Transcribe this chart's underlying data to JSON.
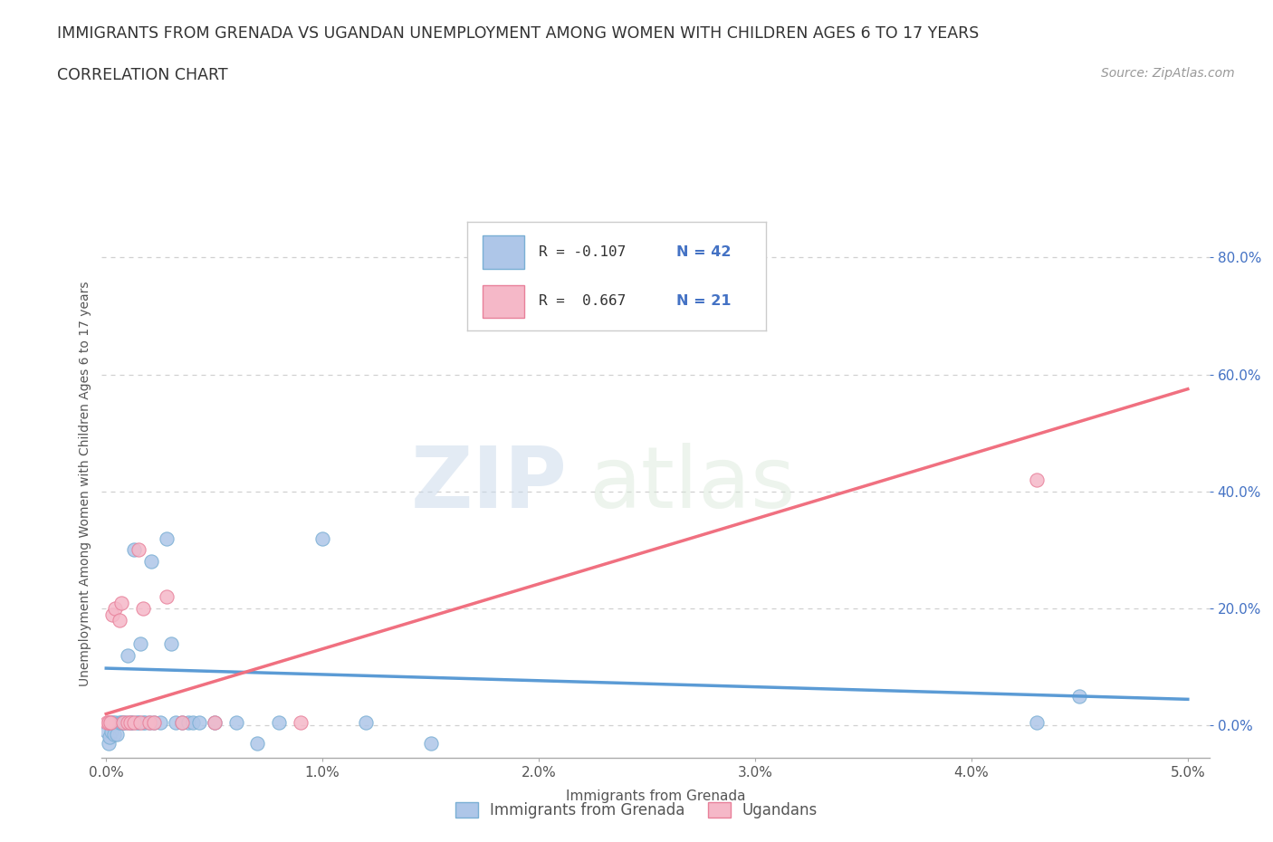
{
  "title": "IMMIGRANTS FROM GRENADA VS UGANDAN UNEMPLOYMENT AMONG WOMEN WITH CHILDREN AGES 6 TO 17 YEARS",
  "subtitle": "CORRELATION CHART",
  "source": "Source: ZipAtlas.com",
  "xlabel": "Immigrants from Grenada",
  "ylabel": "Unemployment Among Women with Children Ages 6 to 17 years",
  "xlim": [
    -0.0002,
    0.051
  ],
  "ylim": [
    -0.055,
    0.88
  ],
  "xticks": [
    0.0,
    0.01,
    0.02,
    0.03,
    0.04,
    0.05
  ],
  "xtick_labels": [
    "0.0%",
    "1.0%",
    "2.0%",
    "3.0%",
    "4.0%",
    "5.0%"
  ],
  "yticks": [
    0.0,
    0.2,
    0.4,
    0.6,
    0.8
  ],
  "ytick_labels": [
    "0.0%",
    "20.0%",
    "40.0%",
    "60.0%",
    "80.0%"
  ],
  "series1_color": "#aec6e8",
  "series1_edge": "#7aafd4",
  "series2_color": "#f5b8c8",
  "series2_edge": "#e8809a",
  "line1_color": "#5b9bd5",
  "line2_color": "#f07080",
  "legend_r1": "R = -0.107",
  "legend_n1": "N = 42",
  "legend_r2": "R =  0.667",
  "legend_n2": "N = 21",
  "legend_label1": "Immigrants from Grenada",
  "legend_label2": "Ugandans",
  "watermark_zip": "ZIP",
  "watermark_atlas": "atlas",
  "background_color": "#ffffff",
  "grid_color": "#d0d0d0",
  "series1_x": [
    5e-05,
    0.0001,
    0.00015,
    0.0002,
    0.00025,
    0.0003,
    0.00035,
    0.0004,
    0.0005,
    0.0006,
    0.0007,
    0.0008,
    0.0009,
    0.001,
    0.0011,
    0.0012,
    0.0013,
    0.0014,
    0.0015,
    0.0016,
    0.0017,
    0.0018,
    0.002,
    0.0021,
    0.0022,
    0.0025,
    0.0028,
    0.003,
    0.0032,
    0.0035,
    0.0038,
    0.004,
    0.0043,
    0.005,
    0.006,
    0.007,
    0.008,
    0.01,
    0.012,
    0.015,
    0.043,
    0.045
  ],
  "series1_y": [
    -0.01,
    -0.03,
    -0.02,
    0.005,
    -0.01,
    0.005,
    -0.015,
    0.005,
    -0.015,
    0.005,
    0.005,
    0.005,
    0.005,
    0.12,
    0.005,
    0.005,
    0.3,
    0.005,
    0.005,
    0.14,
    0.005,
    0.005,
    0.005,
    0.28,
    0.005,
    0.005,
    0.32,
    0.14,
    0.005,
    0.005,
    0.005,
    0.005,
    0.005,
    0.005,
    0.005,
    -0.03,
    0.005,
    0.32,
    0.005,
    -0.03,
    0.005,
    0.05
  ],
  "series2_x": [
    5e-05,
    0.0001,
    0.0002,
    0.0003,
    0.0004,
    0.0006,
    0.0007,
    0.0008,
    0.001,
    0.0011,
    0.0013,
    0.0015,
    0.0016,
    0.0017,
    0.002,
    0.0022,
    0.0028,
    0.0035,
    0.005,
    0.009,
    0.043
  ],
  "series2_y": [
    0.005,
    0.005,
    0.005,
    0.19,
    0.2,
    0.18,
    0.21,
    0.005,
    0.005,
    0.005,
    0.005,
    0.3,
    0.005,
    0.2,
    0.005,
    0.005,
    0.22,
    0.005,
    0.005,
    0.005,
    0.42
  ],
  "line1_x0": 0.0,
  "line1_x1": 0.05,
  "line1_y0": 0.098,
  "line1_y1": 0.045,
  "line2_x0": 0.0,
  "line2_x1": 0.05,
  "line2_y0": 0.02,
  "line2_y1": 0.575
}
